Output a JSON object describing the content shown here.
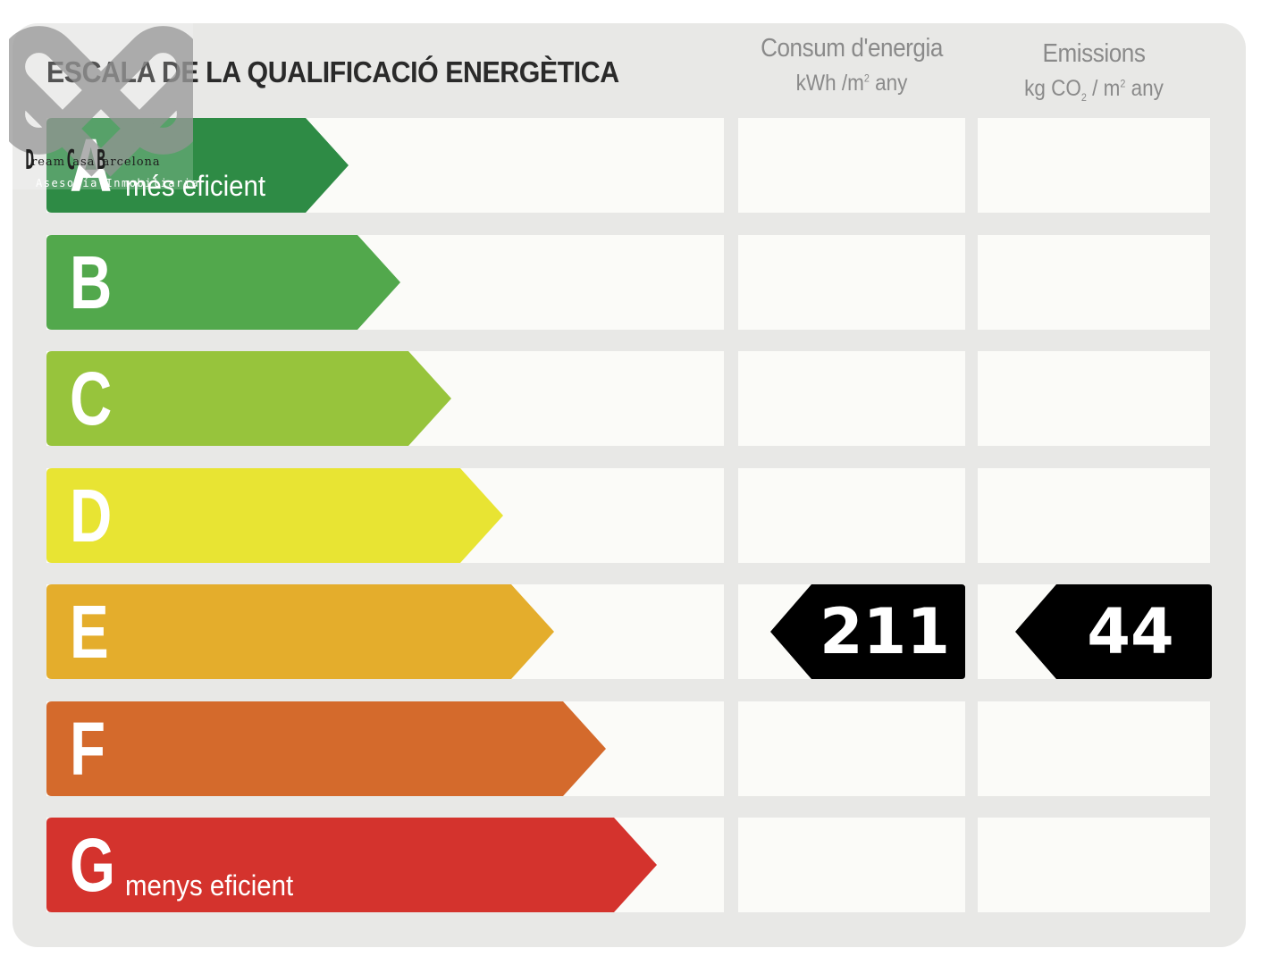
{
  "title": "ESCALA DE LA QUALIFICACIÓ ENERGÈTICA",
  "columns": {
    "consum": {
      "title": "Consum d'energia",
      "unit_a": "kWh /m",
      "unit_sup": "2",
      "unit_b": " any"
    },
    "emissions": {
      "title": "Emissions",
      "unit_a": "kg CO",
      "unit_sub": "2",
      "unit_c": "  / m",
      "unit_sup": "2",
      "unit_b": "  any"
    }
  },
  "rows": [
    {
      "letter": "A",
      "label": "més eficient",
      "color": "#2e8b45"
    },
    {
      "letter": "B",
      "label": "",
      "color": "#52a84c"
    },
    {
      "letter": "C",
      "label": "",
      "color": "#97c43c"
    },
    {
      "letter": "D",
      "label": "",
      "color": "#e8e433"
    },
    {
      "letter": "E",
      "label": "",
      "color": "#e4ad2c"
    },
    {
      "letter": "F",
      "label": "",
      "color": "#d46a2c"
    },
    {
      "letter": "G",
      "label": "menys eficient",
      "color": "#d4332d"
    }
  ],
  "rating": {
    "row_letter": "E",
    "consum_value": "211",
    "emissions_value": "44",
    "badge_color": "#000000"
  },
  "logo": {
    "name_d": "D",
    "name_rest1": "ream ",
    "name_c": "C",
    "name_rest2": "asa ",
    "name_b": "B",
    "name_rest3": "arcelona",
    "tagline": "Asesoría Inmobiliaria",
    "icon": "interlocked-hearts-logo"
  }
}
